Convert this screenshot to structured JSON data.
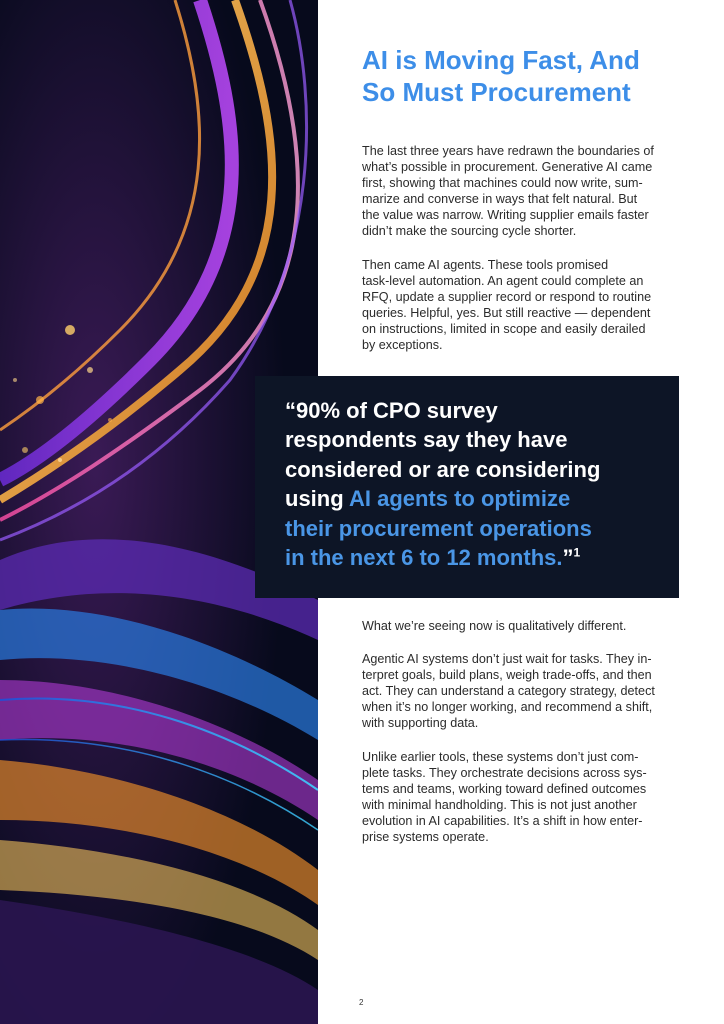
{
  "page": {
    "title_lines": [
      "AI is Moving Fast, And",
      "So Must Procurement"
    ],
    "intro": [
      "The last three years have redrawn the boundaries of",
      "what’s possible in procurement. Generative AI came",
      "first, showing that machines could now write, sum-",
      "marize and converse in ways that felt natural. But",
      "the value was narrow. Writing supplier emails faster",
      "didn’t make the sourcing cycle shorter."
    ],
    "agents": [
      "Then came AI agents. These tools promised",
      "task-level automation. An agent could complete an",
      "RFQ, update a supplier record or respond to routine",
      "queries. Helpful, yes. But still reactive — dependent",
      "on instructions, limited in scope and easily derailed",
      "by exceptions."
    ],
    "quote": {
      "line1": "“90% of CPO survey",
      "line2": "respondents say they have",
      "line3": "considered or are considering",
      "line4_plain": "using ",
      "line4_highlight": "AI agents to optimize",
      "line5": "their procurement operations",
      "line6_highlight": "in the next 6 to 12 months.",
      "closing": "”",
      "footnote": "1"
    },
    "seeing": [
      "What we’re seeing now is qualitatively different."
    ],
    "agentic": [
      "Agentic AI systems don’t just wait for tasks. They in-",
      "terpret goals, build plans, weigh trade-offs, and then",
      "act. They can understand a category strategy, detect",
      "when it’s no longer working, and recommend a shift,",
      "with supporting data."
    ],
    "unlike": [
      "Unlike earlier tools, these systems don’t just com-",
      "plete tasks. They orchestrate decisions across sys-",
      "tems and teams, working toward defined outcomes",
      "with minimal handholding. This is not just another",
      "evolution in AI capabilities. It’s a shift in how enter-",
      "prise systems operate."
    ],
    "page_number": "2"
  },
  "colors": {
    "accent": "#3d8ee8",
    "quote_bg": "#0d1526",
    "art_bg": "#0b1026"
  }
}
